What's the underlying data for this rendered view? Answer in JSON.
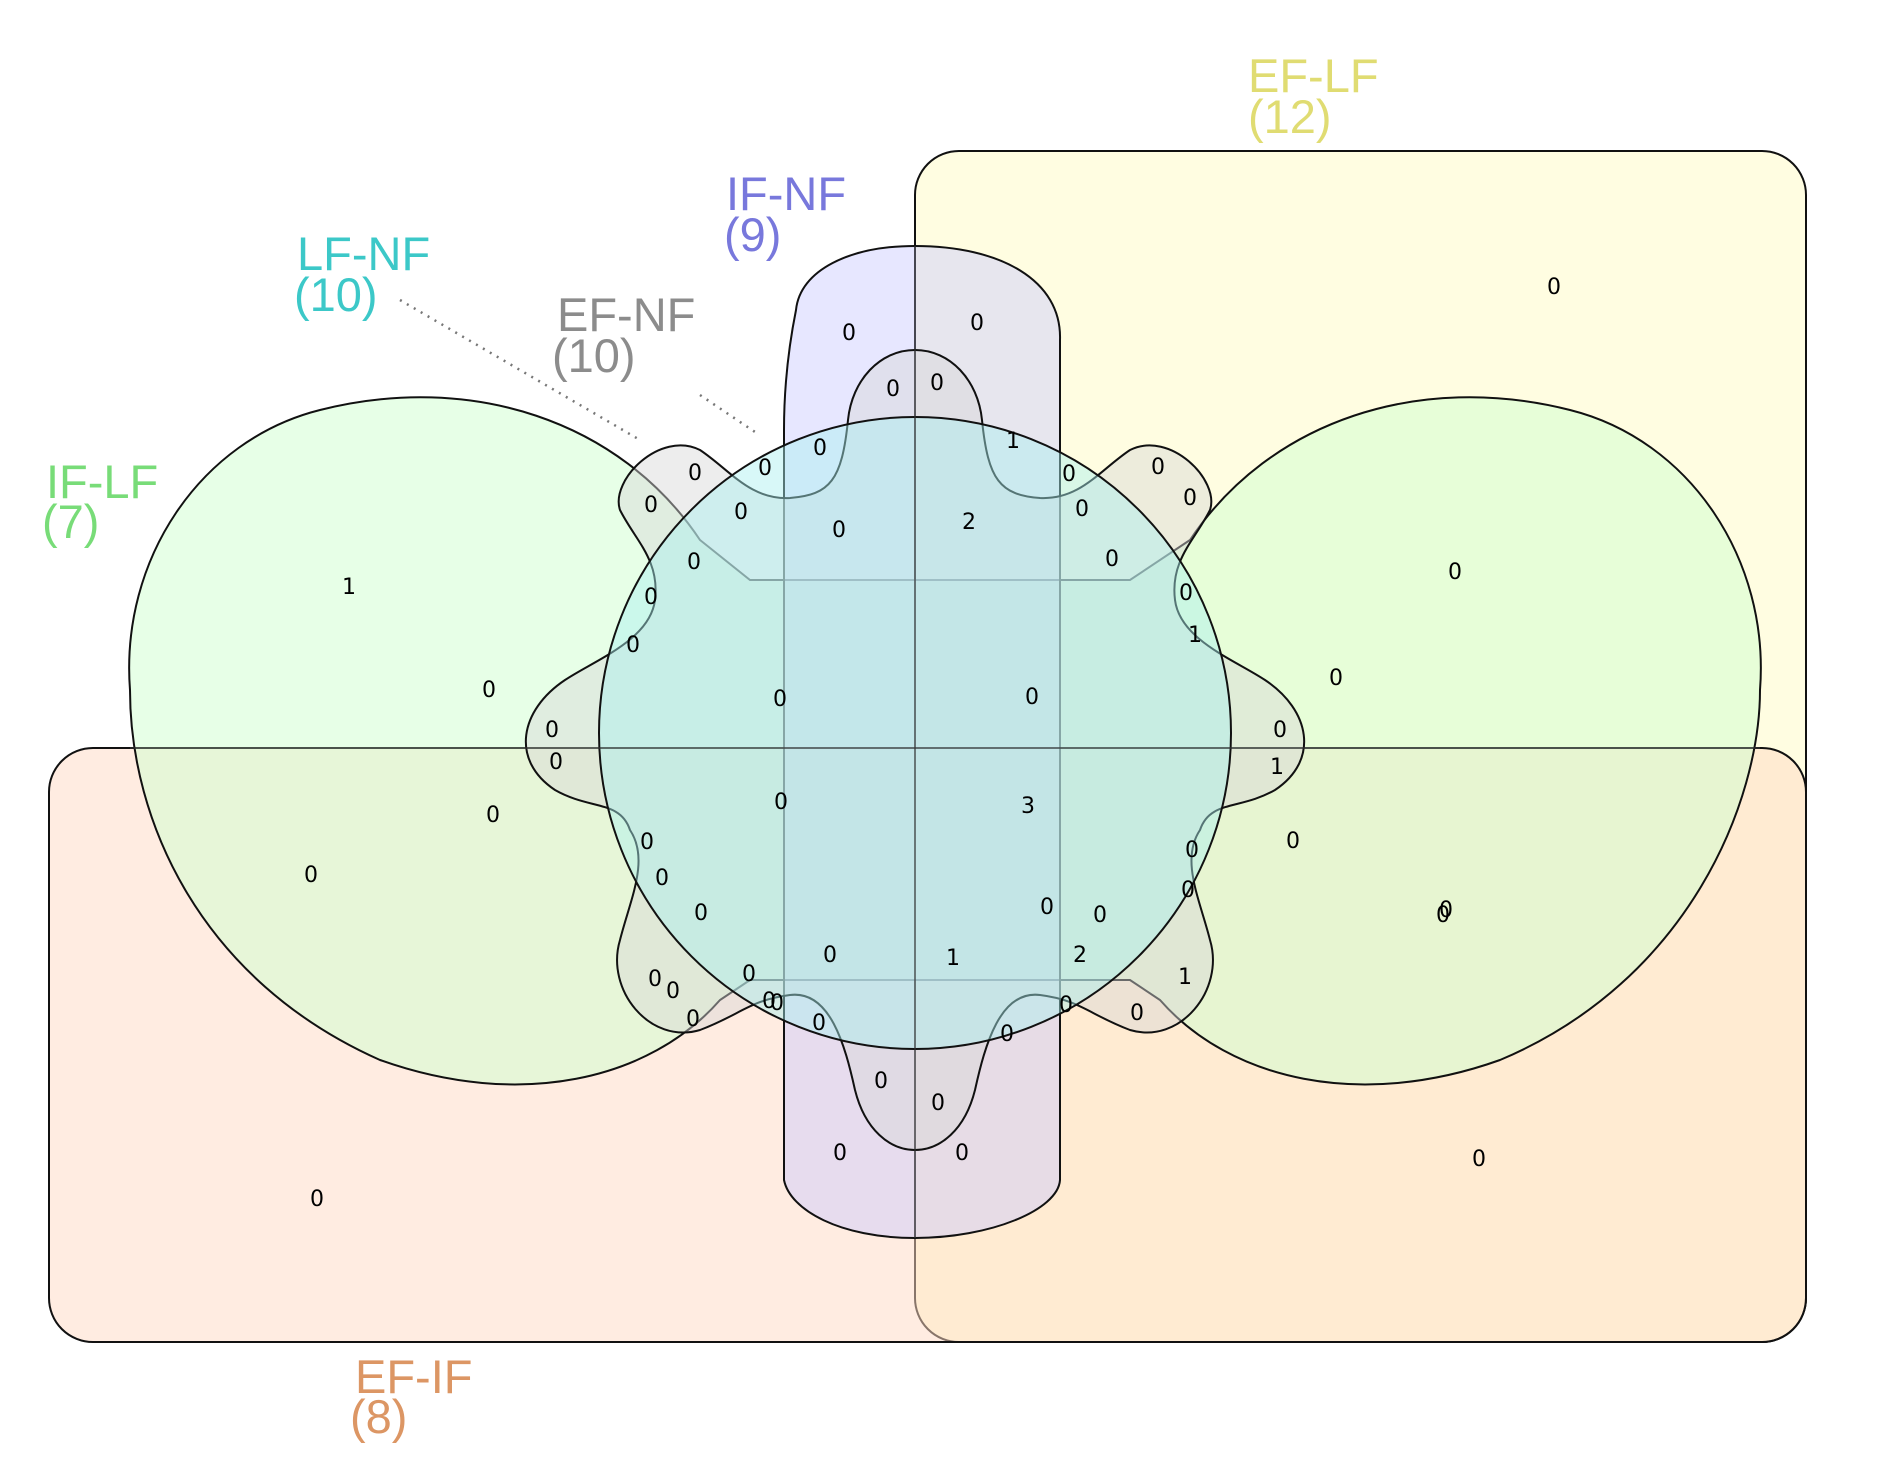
{
  "sets": [
    {
      "name": "EF-LF",
      "count": "(12)",
      "color": "#E0DC72",
      "fill": "#FFFCC8"
    },
    {
      "name": "IF-NF",
      "count": "(9)",
      "color": "#7878DC",
      "fill": "#C9C9FF"
    },
    {
      "name": "LF-NF",
      "count": "(10)",
      "color": "#3CC8C8",
      "fill": "#A8F0F0"
    },
    {
      "name": "EF-NF",
      "count": "(10)",
      "color": "#8C8C8C",
      "fill": "#D8D8D8"
    },
    {
      "name": "IF-LF",
      "count": "(7)",
      "color": "#78DC78",
      "fill": "#CFFFCF"
    },
    {
      "name": "EF-IF",
      "count": "(8)",
      "color": "#DC9664",
      "fill": "#FFD9C4"
    }
  ],
  "region_counts": [
    "0",
    "0",
    "0",
    "0",
    "0",
    "0",
    "0",
    "1",
    "0",
    "0",
    "0",
    "0",
    "0",
    "0",
    "2",
    "0",
    "0",
    "0",
    "0",
    "1",
    "1",
    "0",
    "0",
    "0",
    "0",
    "0",
    "0",
    "0",
    "0",
    "0",
    "0",
    "1",
    "0",
    "0",
    "0",
    "0",
    "0",
    "3",
    "0",
    "0",
    "0",
    "0",
    "0",
    "0",
    "0",
    "0",
    "1",
    "2",
    "1",
    "0",
    "0",
    "0",
    "0",
    "0",
    "0",
    "0",
    "0",
    "0",
    "0",
    "0",
    "0",
    "0",
    "0",
    "0",
    "0",
    "0",
    "0"
  ]
}
